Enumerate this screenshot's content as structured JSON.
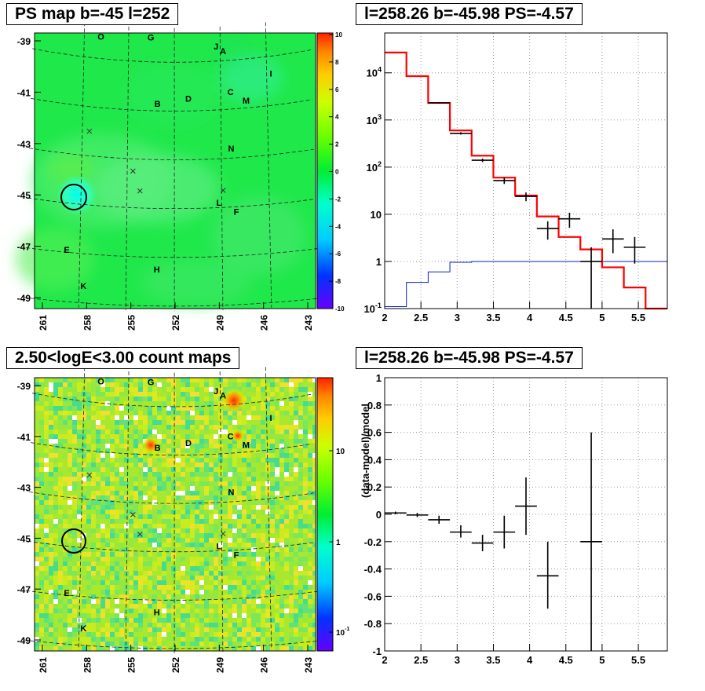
{
  "chart_data": [
    {
      "type": "heatmap",
      "title": "PS map b=-45 l=252",
      "x_ticks": [
        "261",
        "258",
        "255",
        "252",
        "249",
        "246",
        "243"
      ],
      "y_ticks": [
        "-39",
        "-41",
        "-43",
        "-45",
        "-47",
        "-49"
      ],
      "colorbar": {
        "scale": "linear",
        "range": [
          -10,
          10
        ],
        "ticks": [
          "10",
          "8",
          "6",
          "4",
          "2",
          "0",
          "-2",
          "-4",
          "-6",
          "-8",
          "-10"
        ]
      },
      "sources": [
        {
          "label": "O",
          "l": 257.6,
          "b": -39.1
        },
        {
          "label": "G",
          "l": 254.0,
          "b": -39.0
        },
        {
          "label": "J",
          "l": 249.3,
          "b": -39.4
        },
        {
          "label": "A",
          "l": 248.8,
          "b": -39.6
        },
        {
          "label": "I",
          "l": 245.4,
          "b": -40.7
        },
        {
          "label": "B",
          "l": 253.5,
          "b": -41.7
        },
        {
          "label": "D",
          "l": 251.3,
          "b": -41.5
        },
        {
          "label": "C",
          "l": 248.3,
          "b": -41.3
        },
        {
          "label": "M",
          "l": 247.2,
          "b": -41.7
        },
        {
          "label": "N",
          "l": 248.3,
          "b": -43.6
        },
        {
          "label": "L",
          "l": 249.2,
          "b": -45.8
        },
        {
          "label": "F",
          "l": 248.0,
          "b": -46.2
        },
        {
          "label": "E",
          "l": 259.7,
          "b": -47.9
        },
        {
          "label": "H",
          "l": 253.5,
          "b": -48.5
        },
        {
          "label": "K",
          "l": 258.5,
          "b": -49.3
        }
      ],
      "crosses": [
        [
          258.3,
          -43.0
        ],
        [
          255.2,
          -44.5
        ],
        [
          254.7,
          -45.3
        ],
        [
          248.9,
          -45.3
        ]
      ],
      "circle": {
        "l": 259.8,
        "b": -45.8
      }
    },
    {
      "type": "line",
      "title": "l=258.26 b=-45.98 PS=-4.57",
      "xlim": [
        2,
        5.9
      ],
      "ylim": [
        0.1,
        70000
      ],
      "yscale": "log",
      "grid": true,
      "x_ticks": [
        "2",
        "2.5",
        "3",
        "3.5",
        "4",
        "4.5",
        "5",
        "5.5"
      ],
      "y_ticks": [
        "10^-1",
        "1",
        "10",
        "10^2",
        "10^3",
        "10^4"
      ],
      "series": [
        {
          "style": "step-red",
          "edges": [
            2,
            2.3,
            2.6,
            2.9,
            3.2,
            3.5,
            3.8,
            4.1,
            4.4,
            4.7,
            5.0,
            5.3,
            5.6,
            5.9
          ],
          "values": [
            27000,
            8500,
            2300,
            600,
            175,
            60,
            25,
            9,
            3.3,
            1.8,
            0.75,
            0.28,
            0.09
          ]
        },
        {
          "style": "step-blue",
          "edges": [
            2,
            2.3,
            2.6,
            2.9,
            3.2,
            3.5,
            3.8,
            4.1,
            4.4,
            4.7,
            5.0,
            5.3,
            5.6,
            5.9
          ],
          "values": [
            0.11,
            0.36,
            0.6,
            0.96,
            1,
            1,
            1,
            1,
            1,
            1,
            1,
            1,
            1
          ]
        },
        {
          "style": "points",
          "points": [
            {
              "x": 2.75,
              "xerr": 0.15,
              "y": 2300,
              "ylo": 2230,
              "yhi": 2370
            },
            {
              "x": 3.05,
              "xerr": 0.15,
              "y": 520,
              "ylo": 490,
              "yhi": 550
            },
            {
              "x": 3.35,
              "xerr": 0.15,
              "y": 140,
              "ylo": 128,
              "yhi": 152
            },
            {
              "x": 3.65,
              "xerr": 0.15,
              "y": 52,
              "ylo": 44,
              "yhi": 60
            },
            {
              "x": 3.95,
              "xerr": 0.15,
              "y": 24,
              "ylo": 19,
              "yhi": 29
            },
            {
              "x": 4.25,
              "xerr": 0.15,
              "y": 5,
              "ylo": 2.9,
              "yhi": 7.1
            },
            {
              "x": 4.55,
              "xerr": 0.15,
              "y": 8,
              "ylo": 5.2,
              "yhi": 10.8
            },
            {
              "x": 4.85,
              "xerr": 0.15,
              "y": 1,
              "ylo": 0.1,
              "yhi": 2
            },
            {
              "x": 5.15,
              "xerr": 0.15,
              "y": 3,
              "ylo": 1.5,
              "yhi": 4.8
            },
            {
              "x": 5.45,
              "xerr": 0.15,
              "y": 2,
              "ylo": 0.9,
              "yhi": 3.3
            }
          ]
        }
      ]
    },
    {
      "type": "heatmap",
      "title": "2.50<logE<3.00 count maps",
      "x_ticks": [
        "261",
        "258",
        "255",
        "252",
        "249",
        "246",
        "243"
      ],
      "y_ticks": [
        "-39",
        "-41",
        "-43",
        "-45",
        "-47",
        "-49"
      ],
      "colorbar": {
        "scale": "log",
        "ticks": [
          "10",
          "1",
          "10^-1"
        ]
      }
    },
    {
      "type": "scatter",
      "title": "l=258.26 b=-45.98 PS=-4.57",
      "ylabel": "(data-model)/model",
      "xlim": [
        2,
        5.9
      ],
      "ylim": [
        -1,
        1
      ],
      "grid": true,
      "x_ticks": [
        "2",
        "2.5",
        "3",
        "3.5",
        "4",
        "4.5",
        "5",
        "5.5"
      ],
      "y_ticks": [
        "1",
        "0.8",
        "0.6",
        "0.4",
        "0.2",
        "0",
        "-0.2",
        "-0.4",
        "-0.6",
        "-0.8",
        "-1"
      ],
      "points": [
        {
          "x": 2.15,
          "xerr": 0.15,
          "y": 0.01,
          "ylo": 0.0,
          "yhi": 0.02
        },
        {
          "x": 2.45,
          "xerr": 0.15,
          "y": -0.005,
          "ylo": -0.02,
          "yhi": 0.01
        },
        {
          "x": 2.75,
          "xerr": 0.15,
          "y": -0.04,
          "ylo": -0.07,
          "yhi": -0.01
        },
        {
          "x": 3.05,
          "xerr": 0.15,
          "y": -0.13,
          "ylo": -0.17,
          "yhi": -0.08
        },
        {
          "x": 3.35,
          "xerr": 0.15,
          "y": -0.21,
          "ylo": -0.27,
          "yhi": -0.15
        },
        {
          "x": 3.65,
          "xerr": 0.15,
          "y": -0.13,
          "ylo": -0.25,
          "yhi": -0.01
        },
        {
          "x": 3.95,
          "xerr": 0.15,
          "y": 0.06,
          "ylo": -0.15,
          "yhi": 0.27
        },
        {
          "x": 4.25,
          "xerr": 0.15,
          "y": -0.45,
          "ylo": -0.69,
          "yhi": -0.2
        },
        {
          "x": 4.85,
          "xerr": 0.15,
          "y": -0.2,
          "ylo": -1.0,
          "yhi": 0.6
        }
      ]
    }
  ]
}
